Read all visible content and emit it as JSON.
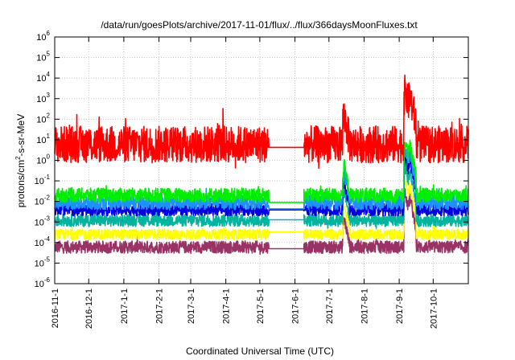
{
  "chart_data": {
    "type": "line",
    "title": "/data/run/goesPlots/archive/2017-11-01/flux/../flux/366daysMoonFluxes.txt",
    "xlabel": "Coordinated Universal Time (UTC)",
    "ylabel_parts": [
      "protons/cm",
      "2",
      "-s-sr-MeV"
    ],
    "y_scale": "log",
    "ylim_exp": [
      -6,
      6
    ],
    "ytick_labels": [
      {
        "base": "10",
        "exp": "6"
      },
      {
        "base": "10",
        "exp": "5"
      },
      {
        "base": "10",
        "exp": "4"
      },
      {
        "base": "10",
        "exp": "3"
      },
      {
        "base": "10",
        "exp": "2"
      },
      {
        "base": "10",
        "exp": "1"
      },
      {
        "base": "10",
        "exp": "0"
      },
      {
        "base": "10",
        "exp": "-1"
      },
      {
        "base": "10",
        "exp": "-2"
      },
      {
        "base": "10",
        "exp": "-3"
      },
      {
        "base": "10",
        "exp": "-4"
      },
      {
        "base": "10",
        "exp": "-5"
      },
      {
        "base": "10",
        "exp": "-6"
      }
    ],
    "xlim": [
      "2016-11-01",
      "2017-11-01"
    ],
    "xtick_labels": [
      "2016-11-1",
      "2016-12-1",
      "2017-1-1",
      "2017-2-1",
      "2017-3-1",
      "2017-4-1",
      "2017-5-1",
      "2017-6-1",
      "2017-7-1",
      "2017-8-1",
      "2017-9-1",
      "2017-10-1"
    ],
    "xtick_dates": [
      "2016-11-01",
      "2016-12-01",
      "2017-01-01",
      "2017-02-01",
      "2017-03-01",
      "2017-04-01",
      "2017-05-01",
      "2017-06-01",
      "2017-07-01",
      "2017-08-01",
      "2017-09-01",
      "2017-10-01"
    ],
    "grid": true,
    "data_gap": [
      "2017-05-09",
      "2017-06-09"
    ],
    "series": [
      {
        "color": "#ff0000",
        "baseline": 6,
        "noise_dex": 0.9
      },
      {
        "color": "#00ee00",
        "baseline": 0.02,
        "noise_dex": 0.35
      },
      {
        "color": "#1e90ff",
        "baseline": 0.009,
        "noise_dex": 0.35
      },
      {
        "color": "#0000dd",
        "baseline": 0.004,
        "noise_dex": 0.3
      },
      {
        "color": "#00b4a0",
        "baseline": 0.0012,
        "noise_dex": 0.3
      },
      {
        "color": "#ffff00",
        "baseline": 0.00025,
        "noise_dex": 0.25
      },
      {
        "color": "#993366",
        "baseline": 6e-05,
        "noise_dex": 0.3
      }
    ],
    "events": [
      {
        "date": "2017-07-14",
        "peak_factor": 25
      },
      {
        "date": "2017-09-06",
        "peak_factor": 400
      },
      {
        "date": "2017-09-10",
        "peak_factor": 250
      }
    ]
  }
}
